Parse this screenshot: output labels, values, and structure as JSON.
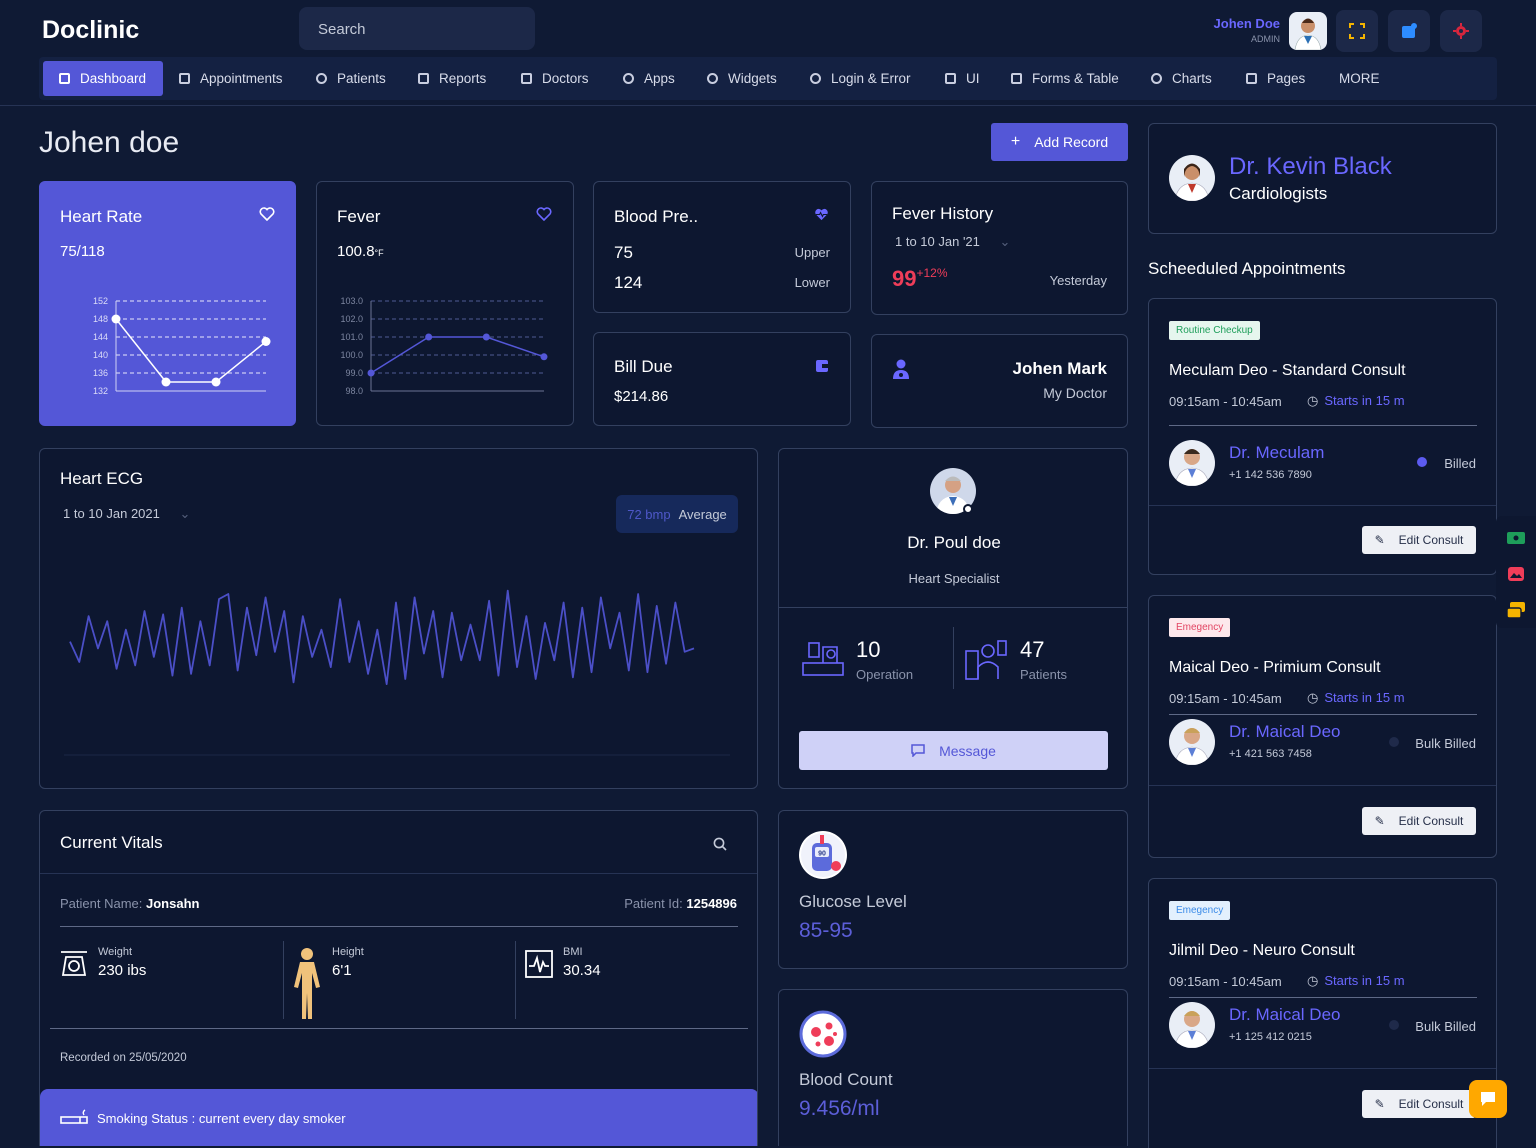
{
  "app": {
    "logo": "Doclinic"
  },
  "search": {
    "placeholder": "Search"
  },
  "user": {
    "name": "Johen Doe",
    "role": "ADMIN"
  },
  "nav": [
    {
      "label": "Dashboard",
      "icon": "dashboard-icon"
    },
    {
      "label": "Appointments",
      "icon": "appointments-icon"
    },
    {
      "label": "Patients",
      "icon": "patients-icon"
    },
    {
      "label": "Reports",
      "icon": "reports-icon"
    },
    {
      "label": "Doctors",
      "icon": "doctors-icon"
    },
    {
      "label": "Apps",
      "icon": "apps-icon"
    },
    {
      "label": "Widgets",
      "icon": "widgets-icon"
    },
    {
      "label": "Login & Error",
      "icon": "login-icon"
    },
    {
      "label": "UI",
      "icon": "ui-icon"
    },
    {
      "label": "Forms & Table",
      "icon": "forms-icon"
    },
    {
      "label": "Charts",
      "icon": "charts-icon"
    },
    {
      "label": "Pages",
      "icon": "pages-icon"
    },
    {
      "label": "MORE",
      "icon": ""
    }
  ],
  "page": {
    "title": "Johen doe",
    "add_record": "Add Record"
  },
  "heart_rate": {
    "title": "Heart Rate",
    "value": "75/118"
  },
  "fever": {
    "title": "Fever",
    "value": "100.8",
    "unit": "°F"
  },
  "blood_pressure": {
    "title": "Blood Pre..",
    "upper_value": "75",
    "upper_label": "Upper",
    "lower_value": "124",
    "lower_label": "Lower"
  },
  "fever_history": {
    "title": "Fever History",
    "range": "1 to 10 Jan '21",
    "value": "99",
    "change": "+12%",
    "when": "Yesterday"
  },
  "bill_due": {
    "title": "Bill Due",
    "value": "$214.86"
  },
  "my_doctor": {
    "name": "Johen Mark",
    "label": "My Doctor"
  },
  "ecg": {
    "title": "Heart ECG",
    "range": "1 to 10 Jan 2021",
    "bpm": "72 bmp",
    "avg": "Average"
  },
  "doctor_card": {
    "name": "Dr. Poul doe",
    "specialty": "Heart Specialist",
    "operations": "10",
    "operations_label": "Operation",
    "patients": "47",
    "patients_label": "Patients",
    "message": "Message"
  },
  "vitals": {
    "title": "Current Vitals",
    "patient_name_label": "Patient Name:",
    "patient_name": "Jonsahn",
    "patient_id_label": "Patient Id:",
    "patient_id": "1254896",
    "weight_label": "Weight",
    "weight": "230 ibs",
    "height_label": "Height",
    "height": "6'1",
    "bmi_label": "BMI",
    "bmi": "30.34",
    "recorded": "Recorded on 25/05/2020",
    "smoking": "Smoking Status : current every day smoker"
  },
  "glucose": {
    "label": "Glucose Level",
    "value": "85-95",
    "meter_value": "90"
  },
  "blood_count": {
    "label": "Blood Count",
    "value": "9.456/ml"
  },
  "main_doctor": {
    "name": "Dr. Kevin Black",
    "specialty": "Cardiologists"
  },
  "appointments_title": "Scheeduled Appointments",
  "appointments": [
    {
      "tag": "Routine Checkup",
      "tag_bg": "#e6f6ee",
      "tag_color": "#1e9e5a",
      "title": "Meculam Deo - Standard Consult",
      "time": "09:15am - 10:45am",
      "starts": "Starts in 15 m",
      "doctor": "Dr. Meculam",
      "phone": "+1 142 536 7890",
      "billing": "Billed",
      "dot": "#5c5bf0",
      "edit": "Edit Consult"
    },
    {
      "tag": "Emegency",
      "tag_bg": "#fde8ec",
      "tag_color": "#e24563",
      "title": "Maical Deo - Primium Consult",
      "time": "09:15am - 10:45am",
      "starts": "Starts in 15 m",
      "doctor": "Dr. Maical Deo",
      "phone": "+1 421 563 7458",
      "billing": "Bulk Billed",
      "dot": "#1f2a4a",
      "edit": "Edit Consult"
    },
    {
      "tag": "Emegency",
      "tag_bg": "#e3f0fd",
      "tag_color": "#3b8be8",
      "title": "Jilmil Deo - Neuro Consult",
      "time": "09:15am - 10:45am",
      "starts": "Starts in 15 m",
      "doctor": "Dr. Maical Deo",
      "phone": "+1 125 412 0215",
      "billing": "Bulk Billed",
      "dot": "#1f2a4a",
      "edit": "Edit Consult"
    }
  ],
  "chart_data": [
    {
      "type": "line",
      "title": "Heart Rate",
      "y": [
        148,
        134,
        134,
        143
      ],
      "ylim": [
        132,
        152
      ],
      "yticks": [
        152,
        148,
        144,
        140,
        136,
        132
      ],
      "grid": true
    },
    {
      "type": "line",
      "title": "Fever",
      "y": [
        99.0,
        101.0,
        101.0,
        99.9
      ],
      "ylim": [
        98.0,
        103.0
      ],
      "yticks": [
        "103.0",
        "102.0",
        "101.0",
        "100.0",
        "99.0",
        "98.0"
      ],
      "grid": true
    },
    {
      "type": "line",
      "title": "Heart ECG",
      "y": [
        62,
        50,
        77,
        58,
        74,
        46,
        69,
        48,
        80,
        53,
        78,
        42,
        82,
        43,
        74,
        48,
        87,
        90,
        45,
        82,
        54,
        88,
        56,
        80,
        38,
        77,
        53,
        69,
        47,
        87,
        50,
        74,
        43,
        69,
        37,
        85,
        40,
        88,
        55,
        80,
        41,
        79,
        51,
        72,
        51,
        86,
        42,
        92,
        47,
        77,
        40,
        73,
        51,
        85,
        41,
        82,
        44,
        88,
        58,
        79,
        45,
        90,
        44,
        83,
        49,
        85,
        56,
        58
      ],
      "ylim": [
        0,
        100
      ],
      "grid": false
    }
  ]
}
